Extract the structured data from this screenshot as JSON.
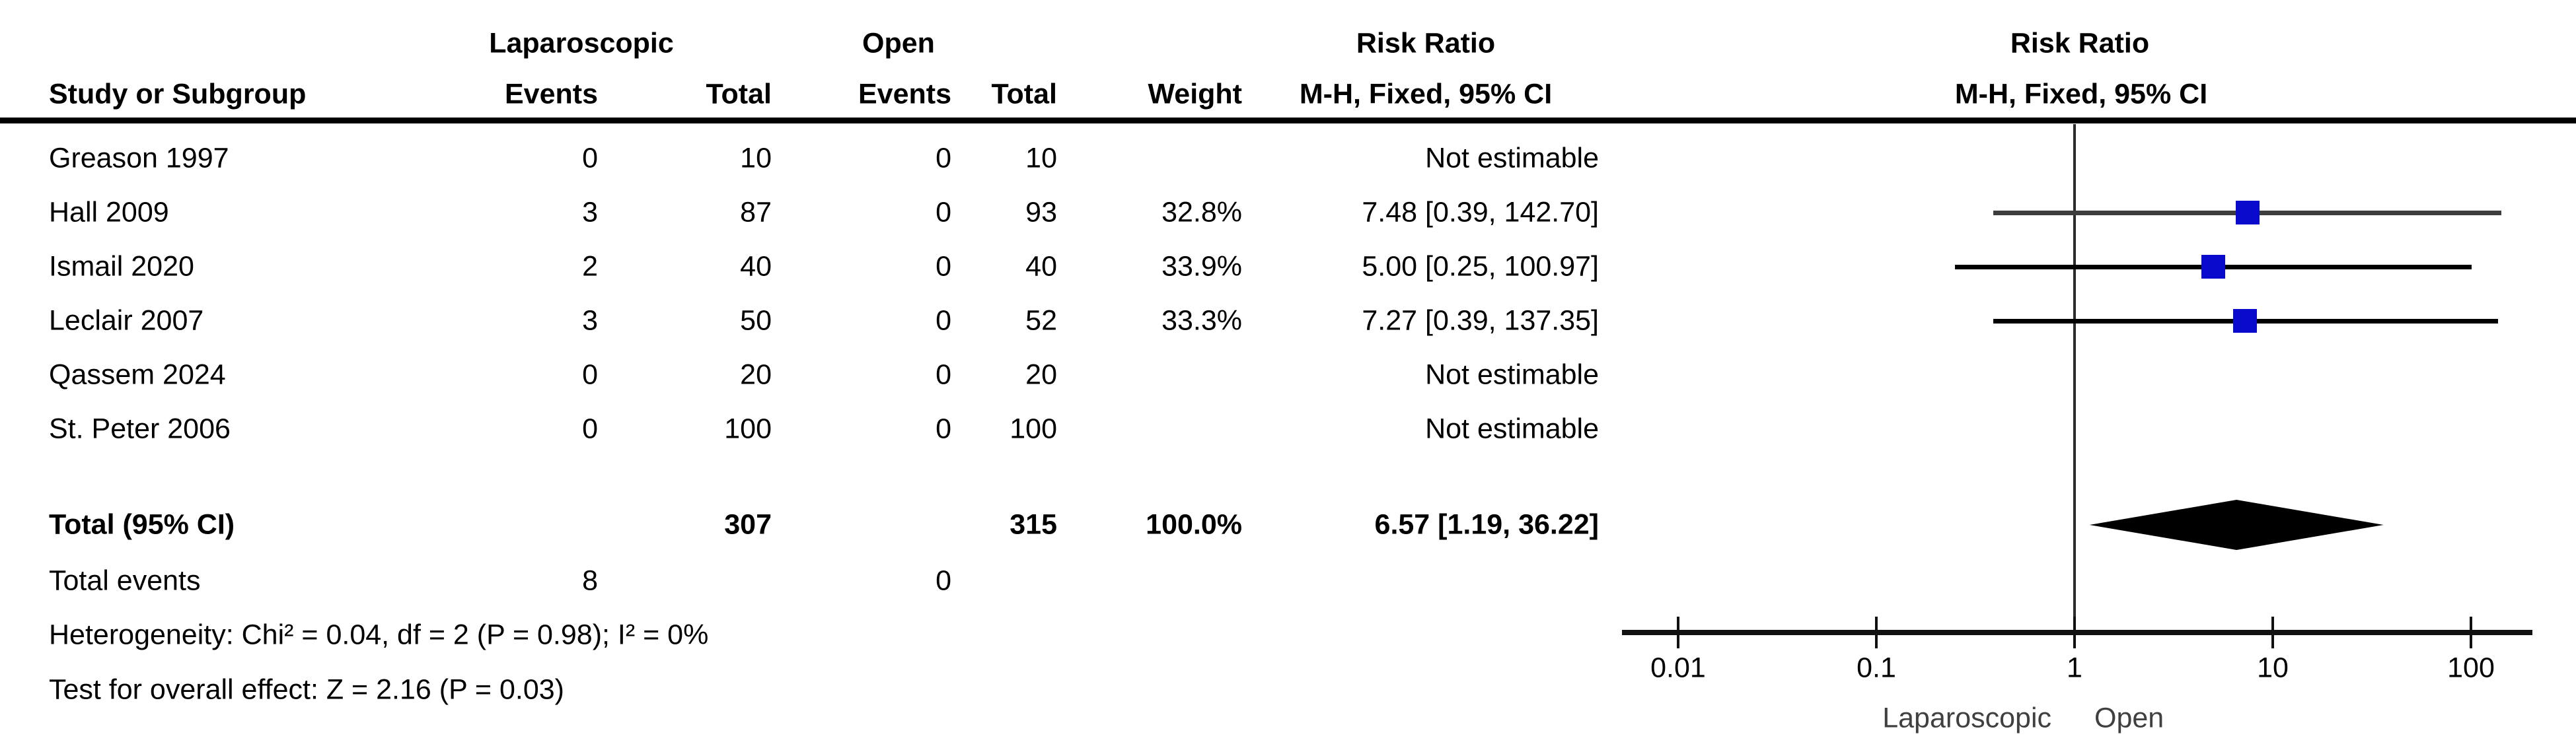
{
  "labels": {
    "group1": "Laparoscopic",
    "group2": "Open",
    "risk_ratio": "Risk Ratio",
    "mh_fixed": "M-H, Fixed, 95% CI"
  },
  "columns": {
    "study": "Study or Subgroup",
    "events": "Events",
    "total": "Total",
    "weight": "Weight"
  },
  "studies": [
    {
      "name": "Greason 1997",
      "events1": "0",
      "total1": "10",
      "events2": "0",
      "total2": "10",
      "weight": "",
      "rr_text": "Not estimable",
      "estimable": false
    },
    {
      "name": "Hall 2009",
      "events1": "3",
      "total1": "87",
      "events2": "0",
      "total2": "93",
      "weight": "32.8%",
      "rr_text": "7.48 [0.39, 142.70]",
      "estimable": true,
      "rr": 7.48,
      "ci_low": 0.39,
      "ci_high": 142.7,
      "ci_color": "#3d3d3d"
    },
    {
      "name": "Ismail 2020",
      "events1": "2",
      "total1": "40",
      "events2": "0",
      "total2": "40",
      "weight": "33.9%",
      "rr_text": "5.00 [0.25, 100.97]",
      "estimable": true,
      "rr": 5.0,
      "ci_low": 0.25,
      "ci_high": 100.97,
      "ci_color": "#000000"
    },
    {
      "name": "Leclair 2007",
      "events1": "3",
      "total1": "50",
      "events2": "0",
      "total2": "52",
      "weight": "33.3%",
      "rr_text": "7.27 [0.39, 137.35]",
      "estimable": true,
      "rr": 7.27,
      "ci_low": 0.39,
      "ci_high": 137.35,
      "ci_color": "#000000"
    },
    {
      "name": "Qassem 2024",
      "events1": "0",
      "total1": "20",
      "events2": "0",
      "total2": "20",
      "weight": "",
      "rr_text": "Not estimable",
      "estimable": false
    },
    {
      "name": "St. Peter 2006",
      "events1": "0",
      "total1": "100",
      "events2": "0",
      "total2": "100",
      "weight": "",
      "rr_text": "Not estimable",
      "estimable": false
    }
  ],
  "total": {
    "label": "Total (95% CI)",
    "total1": "307",
    "total2": "315",
    "weight": "100.0%",
    "rr_text": "6.57 [1.19, 36.22]",
    "rr": 6.57,
    "ci_low": 1.19,
    "ci_high": 36.22
  },
  "total_events": {
    "label": "Total events",
    "events1": "8",
    "events2": "0"
  },
  "footnotes": {
    "heterogeneity": "Heterogeneity: Chi² = 0.04, df = 2 (P = 0.98); I² = 0%",
    "overall_effect": "Test for overall effect: Z = 2.16 (P = 0.03)"
  },
  "axis": {
    "ticks": [
      "0.01",
      "0.1",
      "1",
      "10",
      "100"
    ],
    "left_label": "Laparoscopic",
    "right_label": "Open"
  },
  "colors": {
    "square": "#0a0acc",
    "diamond": "#000000",
    "axis_side_labels": "#404040",
    "text": "#000000"
  },
  "chart_data": {
    "type": "scatter",
    "subtype": "forest-plot",
    "title": "Risk Ratio  M-H, Fixed, 95% CI",
    "x_scale": "log10",
    "x_range": [
      0.01,
      100
    ],
    "x_ticks": [
      0.01,
      0.1,
      1,
      10,
      100
    ],
    "xlabel_left": "Laparoscopic",
    "xlabel_right": "Open",
    "series": [
      {
        "name": "Hall 2009",
        "rr": 7.48,
        "ci_low": 0.39,
        "ci_high": 142.7,
        "weight_pct": 32.8
      },
      {
        "name": "Ismail 2020",
        "rr": 5.0,
        "ci_low": 0.25,
        "ci_high": 100.97,
        "weight_pct": 33.9
      },
      {
        "name": "Leclair 2007",
        "rr": 7.27,
        "ci_low": 0.39,
        "ci_high": 137.35,
        "weight_pct": 33.3
      }
    ],
    "not_estimable": [
      "Greason 1997",
      "Qassem 2024",
      "St. Peter 2006"
    ],
    "summary": {
      "name": "Total (95% CI)",
      "rr": 6.57,
      "ci_low": 1.19,
      "ci_high": 36.22,
      "weight_pct": 100.0,
      "marker": "diamond"
    }
  }
}
